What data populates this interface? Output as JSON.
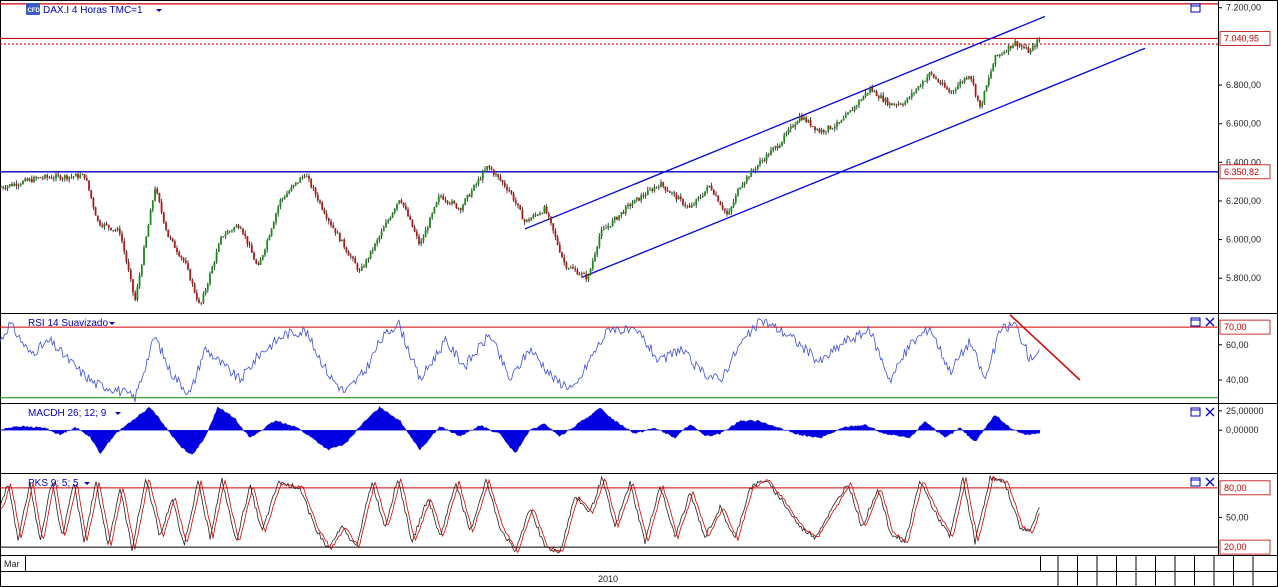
{
  "colors": {
    "candle": "#1a1a1a",
    "bull_candle": "#1a8c1a",
    "bear_candle": "#b01818",
    "channel": "#0000e0",
    "resistance": "#d00000",
    "support_line": "#0000c8",
    "rsi_line": "#3e4fd8",
    "macd_fill": "#0000e0",
    "stoch_k": "#222222",
    "stoch_d": "#d00000",
    "rsi_low_line": "#008800",
    "badge_text": "#c00000"
  },
  "icons": [
    "cfd-logo-icon",
    "dropdown-arrow-icon",
    "window-maximize-icon",
    "close-icon"
  ],
  "chart_data": [
    {
      "name": "price",
      "type": "candlestick",
      "title": "DAX.I 4 Horas TMC=1",
      "ylim": [
        5620,
        7240
      ],
      "y_ticks": [
        "7.200,00",
        "6.800,00",
        "6.600,00",
        "6.400,00",
        "6.200,00",
        "6.000,00",
        "5.800,00"
      ],
      "y_tick_values": [
        7200,
        6800,
        6600,
        6400,
        6200,
        6000,
        5800
      ],
      "last_price_label": "7.040,95",
      "last_price": 7040.95,
      "level_label": "6.350,82",
      "level": 6350.82,
      "resistance_top": 7220,
      "resistance_2": 7040.95,
      "dotted_level": 7012,
      "channel_upper": {
        "from": [
          525,
          6055
        ],
        "to": [
          1045,
          7155
        ]
      },
      "channel_lower": {
        "from": [
          582,
          5805
        ],
        "to": [
          1145,
          6990
        ]
      },
      "keypoints": [
        [
          0,
          6270
        ],
        [
          40,
          6320
        ],
        [
          85,
          6330
        ],
        [
          98,
          6090
        ],
        [
          120,
          6040
        ],
        [
          135,
          5680
        ],
        [
          155,
          6270
        ],
        [
          168,
          6020
        ],
        [
          185,
          5880
        ],
        [
          200,
          5650
        ],
        [
          222,
          6020
        ],
        [
          240,
          6080
        ],
        [
          258,
          5850
        ],
        [
          280,
          6200
        ],
        [
          305,
          6340
        ],
        [
          330,
          6090
        ],
        [
          360,
          5830
        ],
        [
          378,
          6000
        ],
        [
          400,
          6220
        ],
        [
          420,
          5970
        ],
        [
          440,
          6230
        ],
        [
          460,
          6160
        ],
        [
          488,
          6380
        ],
        [
          510,
          6250
        ],
        [
          525,
          6090
        ],
        [
          545,
          6160
        ],
        [
          565,
          5870
        ],
        [
          588,
          5800
        ],
        [
          600,
          6030
        ],
        [
          630,
          6180
        ],
        [
          660,
          6290
        ],
        [
          690,
          6160
        ],
        [
          710,
          6280
        ],
        [
          728,
          6120
        ],
        [
          740,
          6280
        ],
        [
          760,
          6400
        ],
        [
          780,
          6500
        ],
        [
          800,
          6640
        ],
        [
          820,
          6560
        ],
        [
          840,
          6600
        ],
        [
          870,
          6780
        ],
        [
          890,
          6700
        ],
        [
          905,
          6710
        ],
        [
          930,
          6860
        ],
        [
          950,
          6760
        ],
        [
          970,
          6860
        ],
        [
          980,
          6680
        ],
        [
          995,
          6940
        ],
        [
          1015,
          7020
        ],
        [
          1030,
          6970
        ],
        [
          1038,
          7030
        ]
      ]
    },
    {
      "name": "rsi",
      "type": "line",
      "title": "RSI 14 Suavizado",
      "ylim": [
        27,
        78
      ],
      "y_ticks": [
        "60,00",
        "40,00"
      ],
      "y_tick_values": [
        60,
        40
      ],
      "upper_level_label": "70,00",
      "upper_level": 70,
      "lower_level": 30,
      "divergence_line": {
        "from": [
          1010,
          77
        ],
        "to": [
          1080,
          40
        ]
      },
      "keypoints": [
        [
          0,
          62
        ],
        [
          10,
          72
        ],
        [
          30,
          55
        ],
        [
          50,
          62
        ],
        [
          80,
          45
        ],
        [
          95,
          38
        ],
        [
          115,
          35
        ],
        [
          135,
          30
        ],
        [
          155,
          65
        ],
        [
          170,
          45
        ],
        [
          190,
          32
        ],
        [
          205,
          58
        ],
        [
          220,
          50
        ],
        [
          240,
          40
        ],
        [
          260,
          55
        ],
        [
          285,
          66
        ],
        [
          305,
          68
        ],
        [
          330,
          42
        ],
        [
          345,
          33
        ],
        [
          365,
          45
        ],
        [
          380,
          62
        ],
        [
          398,
          73
        ],
        [
          420,
          40
        ],
        [
          445,
          62
        ],
        [
          465,
          48
        ],
        [
          490,
          66
        ],
        [
          510,
          40
        ],
        [
          530,
          58
        ],
        [
          555,
          40
        ],
        [
          575,
          35
        ],
        [
          590,
          52
        ],
        [
          610,
          70
        ],
        [
          640,
          66
        ],
        [
          660,
          50
        ],
        [
          680,
          58
        ],
        [
          700,
          45
        ],
        [
          720,
          40
        ],
        [
          740,
          60
        ],
        [
          762,
          74
        ],
        [
          790,
          65
        ],
        [
          820,
          50
        ],
        [
          845,
          62
        ],
        [
          870,
          68
        ],
        [
          890,
          40
        ],
        [
          910,
          60
        ],
        [
          930,
          70
        ],
        [
          950,
          45
        ],
        [
          970,
          62
        ],
        [
          985,
          40
        ],
        [
          1000,
          68
        ],
        [
          1015,
          72
        ],
        [
          1030,
          52
        ],
        [
          1040,
          58
        ]
      ]
    },
    {
      "name": "macd",
      "type": "histogram",
      "title": "MACDH 26; 12; 9",
      "ylim": [
        -55000,
        35000
      ],
      "y_ticks": [
        "25,00000",
        "0,00000"
      ],
      "y_tick_values": [
        25000,
        0
      ],
      "keypoints": [
        [
          0,
          0
        ],
        [
          15,
          5000
        ],
        [
          45,
          3000
        ],
        [
          60,
          -6000
        ],
        [
          75,
          4000
        ],
        [
          90,
          -8000
        ],
        [
          100,
          -30000
        ],
        [
          115,
          -5000
        ],
        [
          130,
          10000
        ],
        [
          150,
          30000
        ],
        [
          165,
          5000
        ],
        [
          180,
          -20000
        ],
        [
          192,
          -32000
        ],
        [
          205,
          -10000
        ],
        [
          218,
          30000
        ],
        [
          235,
          15000
        ],
        [
          250,
          -10000
        ],
        [
          275,
          12000
        ],
        [
          295,
          5000
        ],
        [
          310,
          -8000
        ],
        [
          328,
          -25000
        ],
        [
          345,
          -18000
        ],
        [
          360,
          5000
        ],
        [
          380,
          30000
        ],
        [
          400,
          12000
        ],
        [
          420,
          -25000
        ],
        [
          440,
          5000
        ],
        [
          460,
          -8000
        ],
        [
          480,
          6000
        ],
        [
          500,
          -5000
        ],
        [
          515,
          -30000
        ],
        [
          530,
          0
        ],
        [
          545,
          8000
        ],
        [
          560,
          -8000
        ],
        [
          580,
          10000
        ],
        [
          600,
          28000
        ],
        [
          615,
          12000
        ],
        [
          635,
          -4000
        ],
        [
          655,
          3000
        ],
        [
          675,
          -10000
        ],
        [
          690,
          8000
        ],
        [
          705,
          -8000
        ],
        [
          720,
          -4000
        ],
        [
          740,
          12000
        ],
        [
          760,
          12000
        ],
        [
          780,
          2000
        ],
        [
          800,
          -6000
        ],
        [
          820,
          -10000
        ],
        [
          845,
          4000
        ],
        [
          865,
          7000
        ],
        [
          885,
          -5000
        ],
        [
          910,
          -10000
        ],
        [
          925,
          12000
        ],
        [
          945,
          -10000
        ],
        [
          960,
          3000
        ],
        [
          975,
          -15000
        ],
        [
          995,
          20000
        ],
        [
          1010,
          3000
        ],
        [
          1025,
          -6000
        ],
        [
          1040,
          -4000
        ]
      ]
    },
    {
      "name": "stochastic",
      "type": "line",
      "title": "PKS 9; 5; 5",
      "ylim": [
        12,
        95
      ],
      "y_ticks": [
        "50,00"
      ],
      "y_tick_values": [
        50
      ],
      "upper_level_label": "80,00",
      "upper_level": 80,
      "lower_level_label": "20,00",
      "lower_level": 20,
      "keypoints": [
        [
          0,
          60
        ],
        [
          8,
          85
        ],
        [
          18,
          28
        ],
        [
          30,
          85
        ],
        [
          40,
          25
        ],
        [
          52,
          88
        ],
        [
          62,
          30
        ],
        [
          74,
          85
        ],
        [
          84,
          25
        ],
        [
          96,
          86
        ],
        [
          108,
          22
        ],
        [
          120,
          80
        ],
        [
          132,
          18
        ],
        [
          146,
          90
        ],
        [
          160,
          30
        ],
        [
          172,
          70
        ],
        [
          184,
          22
        ],
        [
          198,
          86
        ],
        [
          210,
          30
        ],
        [
          222,
          88
        ],
        [
          236,
          25
        ],
        [
          250,
          82
        ],
        [
          262,
          35
        ],
        [
          278,
          85
        ],
        [
          300,
          80
        ],
        [
          315,
          40
        ],
        [
          328,
          18
        ],
        [
          342,
          40
        ],
        [
          356,
          20
        ],
        [
          372,
          86
        ],
        [
          385,
          40
        ],
        [
          398,
          90
        ],
        [
          412,
          25
        ],
        [
          428,
          70
        ],
        [
          440,
          30
        ],
        [
          456,
          86
        ],
        [
          470,
          35
        ],
        [
          486,
          88
        ],
        [
          500,
          40
        ],
        [
          515,
          15
        ],
        [
          530,
          60
        ],
        [
          545,
          20
        ],
        [
          560,
          15
        ],
        [
          575,
          72
        ],
        [
          590,
          55
        ],
        [
          602,
          90
        ],
        [
          615,
          40
        ],
        [
          630,
          85
        ],
        [
          645,
          25
        ],
        [
          660,
          82
        ],
        [
          675,
          30
        ],
        [
          690,
          75
        ],
        [
          705,
          30
        ],
        [
          720,
          60
        ],
        [
          735,
          28
        ],
        [
          750,
          80
        ],
        [
          765,
          88
        ],
        [
          780,
          70
        ],
        [
          800,
          40
        ],
        [
          815,
          30
        ],
        [
          830,
          55
        ],
        [
          848,
          85
        ],
        [
          862,
          40
        ],
        [
          878,
          80
        ],
        [
          890,
          35
        ],
        [
          905,
          25
        ],
        [
          920,
          88
        ],
        [
          935,
          55
        ],
        [
          950,
          30
        ],
        [
          963,
          90
        ],
        [
          975,
          25
        ],
        [
          990,
          90
        ],
        [
          1005,
          85
        ],
        [
          1020,
          40
        ],
        [
          1030,
          35
        ],
        [
          1038,
          60
        ]
      ]
    }
  ],
  "x_axis": {
    "month_label": "Mar",
    "year_label": "2010"
  }
}
